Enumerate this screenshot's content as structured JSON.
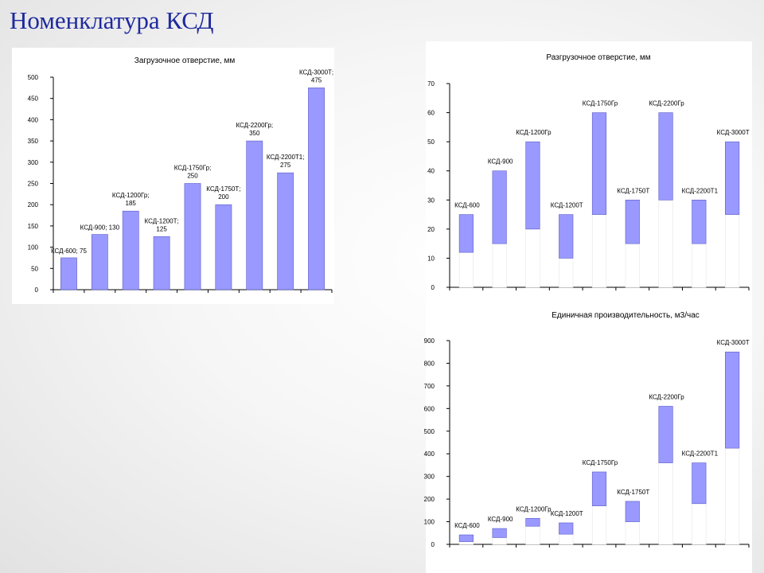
{
  "slide": {
    "title": "Номенклатура КСД"
  },
  "colors": {
    "bar_fill": "#9999ff",
    "bar_stroke": "#5c5cc8",
    "title": "#1f2a9e",
    "base_fill": "#ffffff"
  },
  "chart_data": [
    {
      "id": "load",
      "type": "bar",
      "title": "Загрузочное отверстие, мм",
      "xlabel": "",
      "ylabel": "",
      "ylim": [
        0,
        500
      ],
      "yticks": [
        0,
        50,
        100,
        150,
        200,
        250,
        300,
        350,
        400,
        450,
        500
      ],
      "grid": false,
      "categories": [
        "КСД-600",
        "КСД-900",
        "КСД-1200Гр",
        "КСД-1200Т",
        "КСД-1750Гр",
        "КСД-1750Т",
        "КСД-2200Гр",
        "КСД-2200Т1",
        "КСД-3000Т"
      ],
      "values": [
        75,
        130,
        185,
        125,
        250,
        200,
        350,
        275,
        475
      ],
      "labels": [
        [
          "КСД-600;",
          "75"
        ],
        [
          "КСД-900;",
          "130"
        ],
        [
          "КСД-1200Гр;",
          "185"
        ],
        [
          "КСД-1200Т;",
          "125"
        ],
        [
          "КСД-1750Гр;",
          "250"
        ],
        [
          "КСД-1750Т;",
          "200"
        ],
        [
          "КСД-2200Гр;",
          "350"
        ],
        [
          "КСД-2200Т1;",
          "275"
        ],
        [
          "КСД-3000Т;",
          "475"
        ]
      ]
    },
    {
      "id": "unload",
      "type": "bar",
      "subtype": "floating-range",
      "title": "Разгрузочное отверстие, мм",
      "xlabel": "",
      "ylabel": "",
      "ylim": [
        0,
        70
      ],
      "yticks": [
        0,
        10,
        20,
        30,
        40,
        50,
        60,
        70
      ],
      "grid": false,
      "categories": [
        "КСД-600",
        "КСД-900",
        "КСД-1200Гр",
        "КСД-1200Т",
        "КСД-1750Гр",
        "КСД-1750Т",
        "КСД-2200Гр",
        "КСД-2200Т1",
        "КСД-3000Т"
      ],
      "ranges": [
        [
          12,
          25
        ],
        [
          15,
          40
        ],
        [
          20,
          50
        ],
        [
          10,
          25
        ],
        [
          25,
          60
        ],
        [
          15,
          30
        ],
        [
          30,
          60
        ],
        [
          15,
          30
        ],
        [
          25,
          50
        ]
      ]
    },
    {
      "id": "prod",
      "type": "bar",
      "subtype": "floating-range",
      "title": "Единичная производительность, м3/час",
      "xlabel": "",
      "ylabel": "",
      "ylim": [
        0,
        900
      ],
      "yticks": [
        0,
        100,
        200,
        300,
        400,
        500,
        600,
        700,
        800,
        900
      ],
      "grid": false,
      "categories": [
        "КСД-600",
        "КСД-900",
        "КСД-1200Гр",
        "КСД-1200Т",
        "КСД-1750Гр",
        "КСД-1750Т",
        "КСД-2200Гр",
        "КСД-2200Т1",
        "КСД-3000Т"
      ],
      "ranges": [
        [
          12,
          42
        ],
        [
          30,
          70
        ],
        [
          80,
          115
        ],
        [
          45,
          95
        ],
        [
          170,
          320
        ],
        [
          100,
          190
        ],
        [
          360,
          610
        ],
        [
          180,
          360
        ],
        [
          425,
          850
        ]
      ]
    }
  ]
}
